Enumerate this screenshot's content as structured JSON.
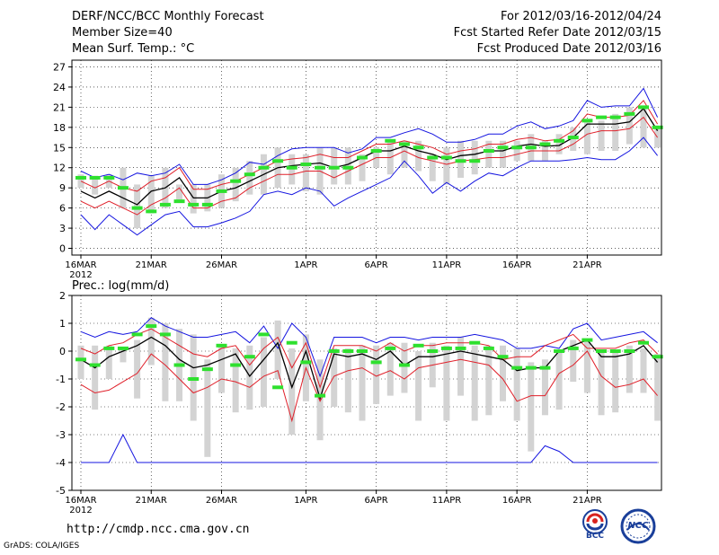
{
  "header": {
    "title": "DERF/NCC/BCC Monthly Forecast",
    "member_size": "Member Size=40",
    "variable": "Mean Surf. Temp.: °C",
    "period": "For 2012/03/16-2012/04/24",
    "started": "Fcst Started Refer Date 2012/03/15",
    "produced": "Fcst Produced Date 2012/03/16"
  },
  "footer": {
    "url": "http://cmdp.ncc.cma.gov.cn",
    "grads": "GrADS: COLA/IGES",
    "logo_bcc": "BCC",
    "logo_ncc": "NCC"
  },
  "colors": {
    "mean": "#000000",
    "spread": "#e0202a",
    "extreme": "#1515e0",
    "observed": "#2ee02e",
    "box": "#d3d3d3"
  },
  "chart_data": [
    {
      "type": "line",
      "name": "temperature",
      "title": "Mean Surf. Temp.: °C",
      "ylim": [
        -1,
        28
      ],
      "yticks": [
        0,
        3,
        6,
        9,
        12,
        15,
        18,
        21,
        24,
        27
      ],
      "xlim": [
        1,
        41
      ],
      "xticks": [
        {
          "day": 1,
          "label": "16MAR"
        },
        {
          "day": 6,
          "label": "21MAR"
        },
        {
          "day": 11,
          "label": "26MAR"
        },
        {
          "day": 17,
          "label": "1APR"
        },
        {
          "day": 22,
          "label": "6APR"
        },
        {
          "day": 27,
          "label": "11APR"
        },
        {
          "day": 32,
          "label": "16APR"
        },
        {
          "day": 37,
          "label": "21APR"
        }
      ],
      "year_label": "2012",
      "grid": true,
      "series": [
        {
          "name": "max",
          "role": "extreme",
          "values": [
            11.5,
            10.5,
            11,
            10.2,
            11.2,
            10.8,
            11.2,
            12.5,
            9.5,
            9.5,
            10.2,
            11.2,
            12.8,
            12.5,
            13.8,
            14.8,
            15,
            15,
            15,
            14.2,
            14.8,
            16.5,
            16.5,
            17.2,
            17.8,
            17,
            15.8,
            15.8,
            16.2,
            17,
            17,
            18.2,
            18.8,
            17.8,
            18.2,
            19,
            22,
            21,
            21.2,
            21.2,
            23.8,
            19.5
          ]
        },
        {
          "name": "upper",
          "role": "spread",
          "values": [
            10,
            9,
            10,
            9,
            8.5,
            10,
            10.5,
            12,
            8.8,
            8.8,
            9.5,
            10,
            11,
            12,
            13,
            13.3,
            13.5,
            14,
            13.5,
            13.5,
            14.5,
            15.5,
            15.5,
            16,
            15.5,
            15,
            14,
            14.5,
            14.8,
            15.5,
            15.5,
            16.2,
            16.5,
            16,
            16.2,
            17.5,
            20,
            19.5,
            19.5,
            19.8,
            22,
            18.5
          ]
        },
        {
          "name": "mean",
          "role": "mean",
          "values": [
            8.5,
            7.5,
            8.5,
            7.5,
            6.5,
            8.5,
            9,
            10.5,
            7.5,
            7.5,
            8.5,
            9,
            10,
            11,
            12,
            12.3,
            12.5,
            12.7,
            12,
            12.5,
            13.5,
            14.5,
            14.5,
            15.2,
            14.5,
            14,
            13.2,
            13.8,
            14,
            14.5,
            14.5,
            15.2,
            15.5,
            15.2,
            15.3,
            16.5,
            18.5,
            18.5,
            18.5,
            18.8,
            20.8,
            17.5
          ]
        },
        {
          "name": "lower",
          "role": "spread",
          "values": [
            7,
            6,
            7,
            6,
            5,
            6.5,
            7.5,
            9,
            6,
            6,
            7,
            7.5,
            9,
            10,
            11,
            11,
            11.5,
            11.5,
            10.5,
            11.5,
            12.5,
            13.5,
            13.5,
            14.5,
            13.5,
            13,
            12.5,
            13,
            13.2,
            13.5,
            13.5,
            14,
            14.5,
            14.5,
            14.5,
            15.5,
            17,
            17.5,
            17.5,
            17.8,
            19.5,
            16.5
          ]
        },
        {
          "name": "min",
          "role": "extreme",
          "values": [
            5,
            2.8,
            5,
            3.5,
            2,
            3.5,
            5,
            5.5,
            3.2,
            3.2,
            3.8,
            4.5,
            5.5,
            8,
            8.5,
            8,
            9,
            8.5,
            6.3,
            7.5,
            8.5,
            9.5,
            10.5,
            13,
            10.8,
            8.2,
            9.8,
            8.5,
            10,
            11.2,
            10.8,
            12,
            13,
            13,
            13,
            13.2,
            13.5,
            13.2,
            13.2,
            14.5,
            16.5,
            13.8
          ]
        },
        {
          "name": "observed",
          "role": "observed",
          "values": [
            10.5,
            10.5,
            10.5,
            9,
            6,
            5.5,
            6.5,
            7,
            6.5,
            6.5,
            8.5,
            10,
            11,
            12,
            13,
            12,
            12.5,
            12,
            12,
            12,
            13.5,
            14.5,
            16,
            15.5,
            15,
            13.5,
            13.5,
            13,
            13,
            14.5,
            15,
            15,
            15,
            15.5,
            16,
            16.5,
            19,
            19.5,
            19.5,
            20,
            21,
            18
          ]
        }
      ],
      "boxes": [
        [
          9,
          11
        ],
        [
          8,
          10.8
        ],
        [
          9,
          11
        ],
        [
          6,
          12
        ],
        [
          3,
          9.5
        ],
        [
          5.2,
          10.8
        ],
        [
          6,
          12
        ],
        [
          7,
          9.5
        ],
        [
          5.2,
          9.5
        ],
        [
          5.5,
          9.5
        ],
        [
          6,
          11
        ],
        [
          7,
          12
        ],
        [
          8,
          13
        ],
        [
          8,
          14
        ],
        [
          9,
          15
        ],
        [
          9.5,
          14
        ],
        [
          8.5,
          14
        ],
        [
          8,
          15
        ],
        [
          9.5,
          15
        ],
        [
          9.5,
          15
        ],
        [
          10,
          14
        ],
        [
          12,
          15
        ],
        [
          11,
          16
        ],
        [
          12,
          16
        ],
        [
          11.5,
          16
        ],
        [
          10,
          14
        ],
        [
          9.5,
          15
        ],
        [
          10.5,
          16
        ],
        [
          11,
          16
        ],
        [
          12,
          16
        ],
        [
          12,
          16
        ],
        [
          13,
          16
        ],
        [
          13,
          17
        ],
        [
          13,
          16
        ],
        [
          14,
          17
        ],
        [
          14.5,
          18
        ],
        [
          14,
          19
        ],
        [
          14.5,
          19
        ],
        [
          14.5,
          20
        ],
        [
          15.5,
          21
        ],
        [
          15,
          21
        ],
        [
          15,
          18
        ]
      ]
    },
    {
      "type": "line",
      "name": "precipitation",
      "title": "Prec.: log(mm/d)",
      "ylim": [
        -5,
        2
      ],
      "yticks": [
        -5,
        -4,
        -3,
        -2,
        -1,
        0,
        1,
        2
      ],
      "xlim": [
        1,
        41
      ],
      "xticks": [
        {
          "day": 1,
          "label": "16MAR"
        },
        {
          "day": 6,
          "label": "21MAR"
        },
        {
          "day": 11,
          "label": "26MAR"
        },
        {
          "day": 17,
          "label": "1APR"
        },
        {
          "day": 22,
          "label": "6APR"
        },
        {
          "day": 27,
          "label": "11APR"
        },
        {
          "day": 32,
          "label": "16APR"
        },
        {
          "day": 37,
          "label": "21APR"
        }
      ],
      "year_label": "2012",
      "grid": true,
      "series": [
        {
          "name": "max",
          "role": "extreme",
          "values": [
            0.7,
            0.5,
            0.7,
            0.6,
            0.7,
            1.2,
            0.9,
            0.7,
            0.5,
            0.5,
            0.6,
            0.7,
            0.3,
            0.9,
            0.1,
            1.0,
            0.5,
            -0.9,
            0.5,
            0.5,
            0.5,
            0.3,
            0.5,
            0.5,
            0.4,
            0.5,
            0.5,
            0.5,
            0.6,
            0.5,
            0.4,
            0.1,
            0.1,
            0.2,
            0.1,
            0.8,
            1.0,
            0.4,
            0.5,
            0.6,
            0.7,
            0.3
          ]
        },
        {
          "name": "upper",
          "role": "spread",
          "values": [
            0.1,
            -0.1,
            0.2,
            0.3,
            0.6,
            0.8,
            0.5,
            0.2,
            -0.1,
            -0.2,
            0.1,
            0.2,
            -0.5,
            0.1,
            0.5,
            -0.6,
            0.3,
            -1.3,
            0.2,
            0.2,
            0.2,
            0,
            0.3,
            0,
            0.2,
            0.2,
            0.3,
            0.3,
            0.3,
            0.2,
            -0.3,
            -0.2,
            -0.2,
            0.2,
            0.4,
            0.6,
            0.1,
            0.1,
            0.1,
            0.3,
            0.4,
            -0.1
          ]
        },
        {
          "name": "mean",
          "role": "mean",
          "values": [
            -0.3,
            -0.6,
            -0.2,
            0,
            0.2,
            0.5,
            0.2,
            -0.3,
            -0.6,
            -0.5,
            -0.3,
            -0.1,
            -0.9,
            -0.3,
            0.3,
            -1.3,
            0,
            -1.7,
            -0.1,
            -0.2,
            -0.1,
            -0.3,
            0,
            -0.5,
            -0.2,
            -0.2,
            -0.1,
            0,
            -0.1,
            -0.2,
            -0.3,
            -0.7,
            -0.6,
            -0.6,
            0,
            0.2,
            0.4,
            -0.2,
            -0.2,
            -0.1,
            0.2,
            -0.4
          ]
        },
        {
          "name": "lower",
          "role": "spread",
          "values": [
            -1.2,
            -1.5,
            -1.4,
            -1.1,
            -0.8,
            -0.1,
            -0.5,
            -1.0,
            -1.5,
            -1.3,
            -1.0,
            -1.1,
            -1.3,
            -0.9,
            -0.7,
            -2.5,
            -0.6,
            -1.8,
            -0.9,
            -0.7,
            -0.6,
            -0.9,
            -0.7,
            -1.0,
            -0.6,
            -0.5,
            -0.4,
            -0.3,
            -0.4,
            -0.5,
            -1.0,
            -1.8,
            -1.6,
            -1.6,
            -0.8,
            -0.5,
            0,
            -0.9,
            -1.3,
            -1.2,
            -1.0,
            -1.6
          ]
        },
        {
          "name": "min",
          "role": "extreme",
          "values": [
            -4,
            -4,
            -4,
            -3,
            -4,
            -4,
            -4,
            -4,
            -4,
            -4,
            -4,
            -4,
            -4,
            -4,
            -4,
            -4,
            -4,
            -4,
            -4,
            -4,
            -4,
            -4,
            -4,
            -4,
            -4,
            -4,
            -4,
            -4,
            -4,
            -4,
            -4,
            -4,
            -4,
            -3.4,
            -3.6,
            -4,
            -4,
            -4,
            -4,
            -4,
            -4,
            -4
          ]
        },
        {
          "name": "observed",
          "role": "observed",
          "values": [
            -0.3,
            -0.5,
            0.1,
            0.1,
            0.6,
            0.9,
            0.6,
            -0.5,
            -1.0,
            -0.65,
            0.2,
            -0.5,
            -0.2,
            0.6,
            -1.3,
            0.3,
            -0.4,
            -1.6,
            0,
            0,
            0,
            -0.4,
            0.1,
            -0.5,
            0.2,
            0,
            0.1,
            0.1,
            0.3,
            0.1,
            -0.2,
            -0.6,
            -0.6,
            -0.6,
            0,
            0.1,
            0.4,
            0,
            0,
            0,
            0.3,
            -0.2
          ]
        }
      ],
      "boxes": [
        [
          -1,
          0.2
        ],
        [
          -2.1,
          0.2
        ],
        [
          -1,
          0.2
        ],
        [
          -0.4,
          0.1
        ],
        [
          -1.7,
          0.4
        ],
        [
          -0.5,
          1.2
        ],
        [
          -1.8,
          1.0
        ],
        [
          -1.8,
          0.8
        ],
        [
          -2.5,
          0.6
        ],
        [
          -3.8,
          -0.3
        ],
        [
          -1.5,
          0.2
        ],
        [
          -2.2,
          0.1
        ],
        [
          -2.1,
          0.2
        ],
        [
          -2.0,
          0.5
        ],
        [
          -1.0,
          1.1
        ],
        [
          -3.0,
          0.1
        ],
        [
          -1.8,
          0.6
        ],
        [
          -3.2,
          -0.3
        ],
        [
          -2.0,
          0.1
        ],
        [
          -2.2,
          0.1
        ],
        [
          -2.5,
          0.2
        ],
        [
          -1.9,
          0.2
        ],
        [
          -1.6,
          0.3
        ],
        [
          -1.5,
          0.3
        ],
        [
          -2.5,
          0
        ],
        [
          -1.3,
          0.3
        ],
        [
          -2.5,
          0.2
        ],
        [
          -1.6,
          0.5
        ],
        [
          -2.5,
          0.2
        ],
        [
          -2.3,
          0.2
        ],
        [
          -1.8,
          0.2
        ],
        [
          -2.5,
          0.1
        ],
        [
          -3.6,
          -0.4
        ],
        [
          -2.3,
          -0.3
        ],
        [
          -2.1,
          0
        ],
        [
          -1.1,
          0.4
        ],
        [
          -1.5,
          0.4
        ],
        [
          -2.3,
          0
        ],
        [
          -2.2,
          0
        ],
        [
          -1.5,
          0.2
        ],
        [
          -1.5,
          0.1
        ],
        [
          -2.5,
          -0.1
        ]
      ]
    }
  ]
}
